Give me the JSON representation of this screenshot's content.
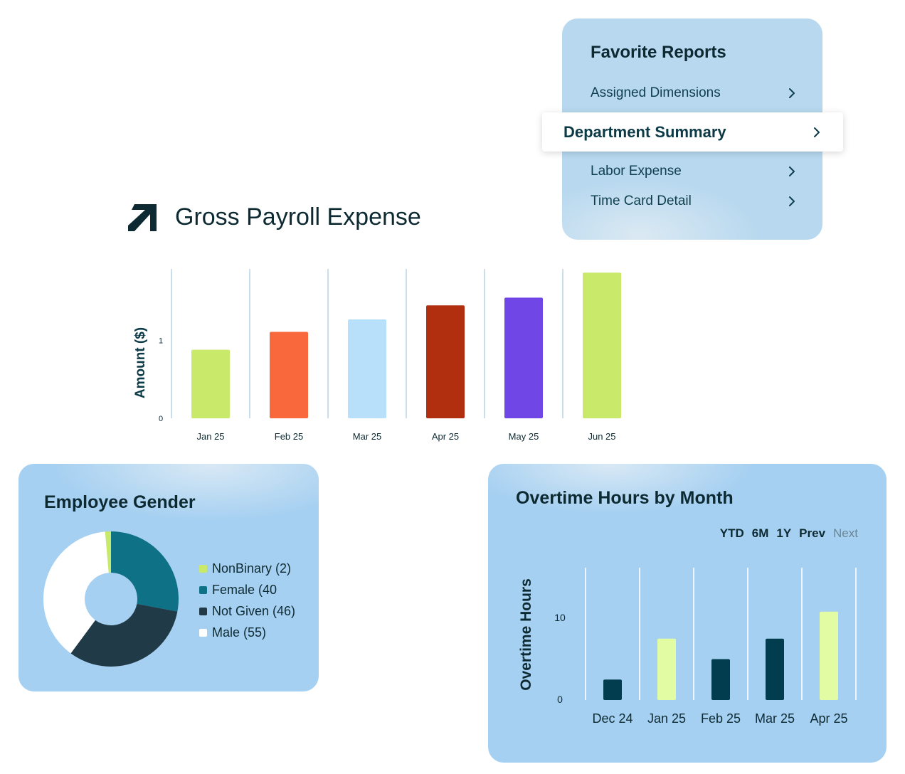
{
  "favorite_reports": {
    "title": "Favorite Reports",
    "items": [
      {
        "label": "Assigned Dimensions"
      },
      {
        "label": "Department Summary",
        "selected": true
      },
      {
        "label": "Labor Expense"
      },
      {
        "label": "Time Card Detail"
      }
    ],
    "chevron_icon": "chevron-right-icon"
  },
  "gross_payroll": {
    "logo_icon": "arrow-up-right-logo",
    "title": "Gross Payroll Expense"
  },
  "employee_gender": {
    "title": "Employee Gender",
    "legend": [
      {
        "label": "NonBinary (2)",
        "color": "#c9e96a"
      },
      {
        "label": "Female (40",
        "color": "#0f7186"
      },
      {
        "label": "Not Given (46)",
        "color": "#203a47"
      },
      {
        "label": "Male (55)",
        "color": "#ffffff"
      }
    ]
  },
  "overtime": {
    "title": "Overtime Hours by Month",
    "ranges": [
      {
        "label": "YTD",
        "enabled": true
      },
      {
        "label": "6M",
        "enabled": true
      },
      {
        "label": "1Y",
        "enabled": true
      },
      {
        "label": "Prev",
        "enabled": true
      },
      {
        "label": "Next",
        "enabled": false
      }
    ]
  },
  "chart_data": [
    {
      "id": "gross_payroll",
      "type": "bar",
      "title": "Gross Payroll Expense",
      "xlabel": "",
      "ylabel": "Amount ($)",
      "categories": [
        "Jan 25",
        "Feb 25",
        "Mar 25",
        "Apr 25",
        "May 25",
        "Jun 25"
      ],
      "values": [
        0.88,
        1.11,
        1.27,
        1.45,
        1.55,
        1.87
      ],
      "colors": [
        "#c9e96a",
        "#f9673d",
        "#b8e0fb",
        "#b12e0e",
        "#7047e6",
        "#c9e96a"
      ],
      "yticks": [
        0,
        1
      ],
      "ylim": [
        0,
        1.9
      ],
      "grid": "vertical"
    },
    {
      "id": "employee_gender",
      "type": "pie",
      "title": "Employee Gender",
      "categories": [
        "NonBinary",
        "Female",
        "Not Given",
        "Male"
      ],
      "values": [
        2,
        40,
        46,
        55
      ],
      "colors": [
        "#c9e96a",
        "#0f7186",
        "#203a47",
        "#ffffff"
      ],
      "donut": true,
      "legend_position": "right"
    },
    {
      "id": "overtime_hours",
      "type": "bar",
      "title": "Overtime Hours by Month",
      "xlabel": "",
      "ylabel": "Overtime Hours",
      "categories": [
        "Dec 24",
        "Jan 25",
        "Feb 25",
        "Mar 25",
        "Apr 25"
      ],
      "values": [
        2.5,
        7.5,
        5,
        7.5,
        10.8
      ],
      "colors": [
        "#023d4f",
        "#e1fca3",
        "#023d4f",
        "#023d4f",
        "#e1fca3"
      ],
      "yticks": [
        0,
        10
      ],
      "ylim": [
        0,
        16
      ],
      "grid": "vertical"
    }
  ]
}
